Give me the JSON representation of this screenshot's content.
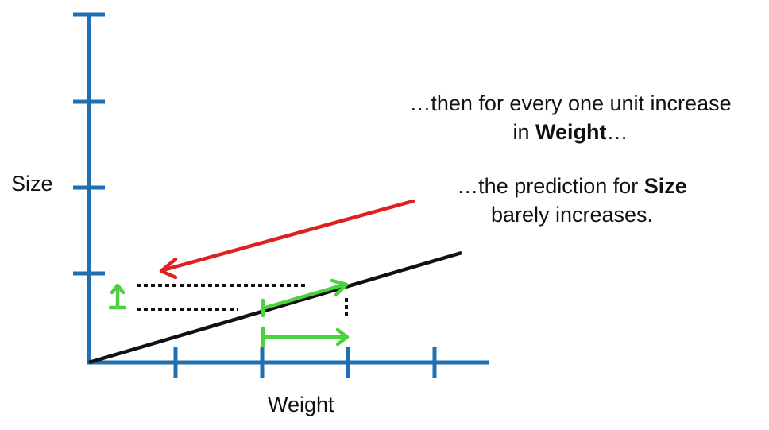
{
  "axes": {
    "x_label": "Weight",
    "y_label": "Size",
    "axis_color": "#1f6fb2"
  },
  "line_color": "#111111",
  "arrow_red_color": "#e02020",
  "arrow_green_color": "#4cd23c",
  "caption1": {
    "line1": "…then for every one unit increase",
    "line2_pre": "in ",
    "line2_bold": "Weight",
    "line2_post": "…"
  },
  "caption2": {
    "line1_pre": "…the prediction for ",
    "line1_bold": "Size",
    "line2": "barely increases."
  }
}
